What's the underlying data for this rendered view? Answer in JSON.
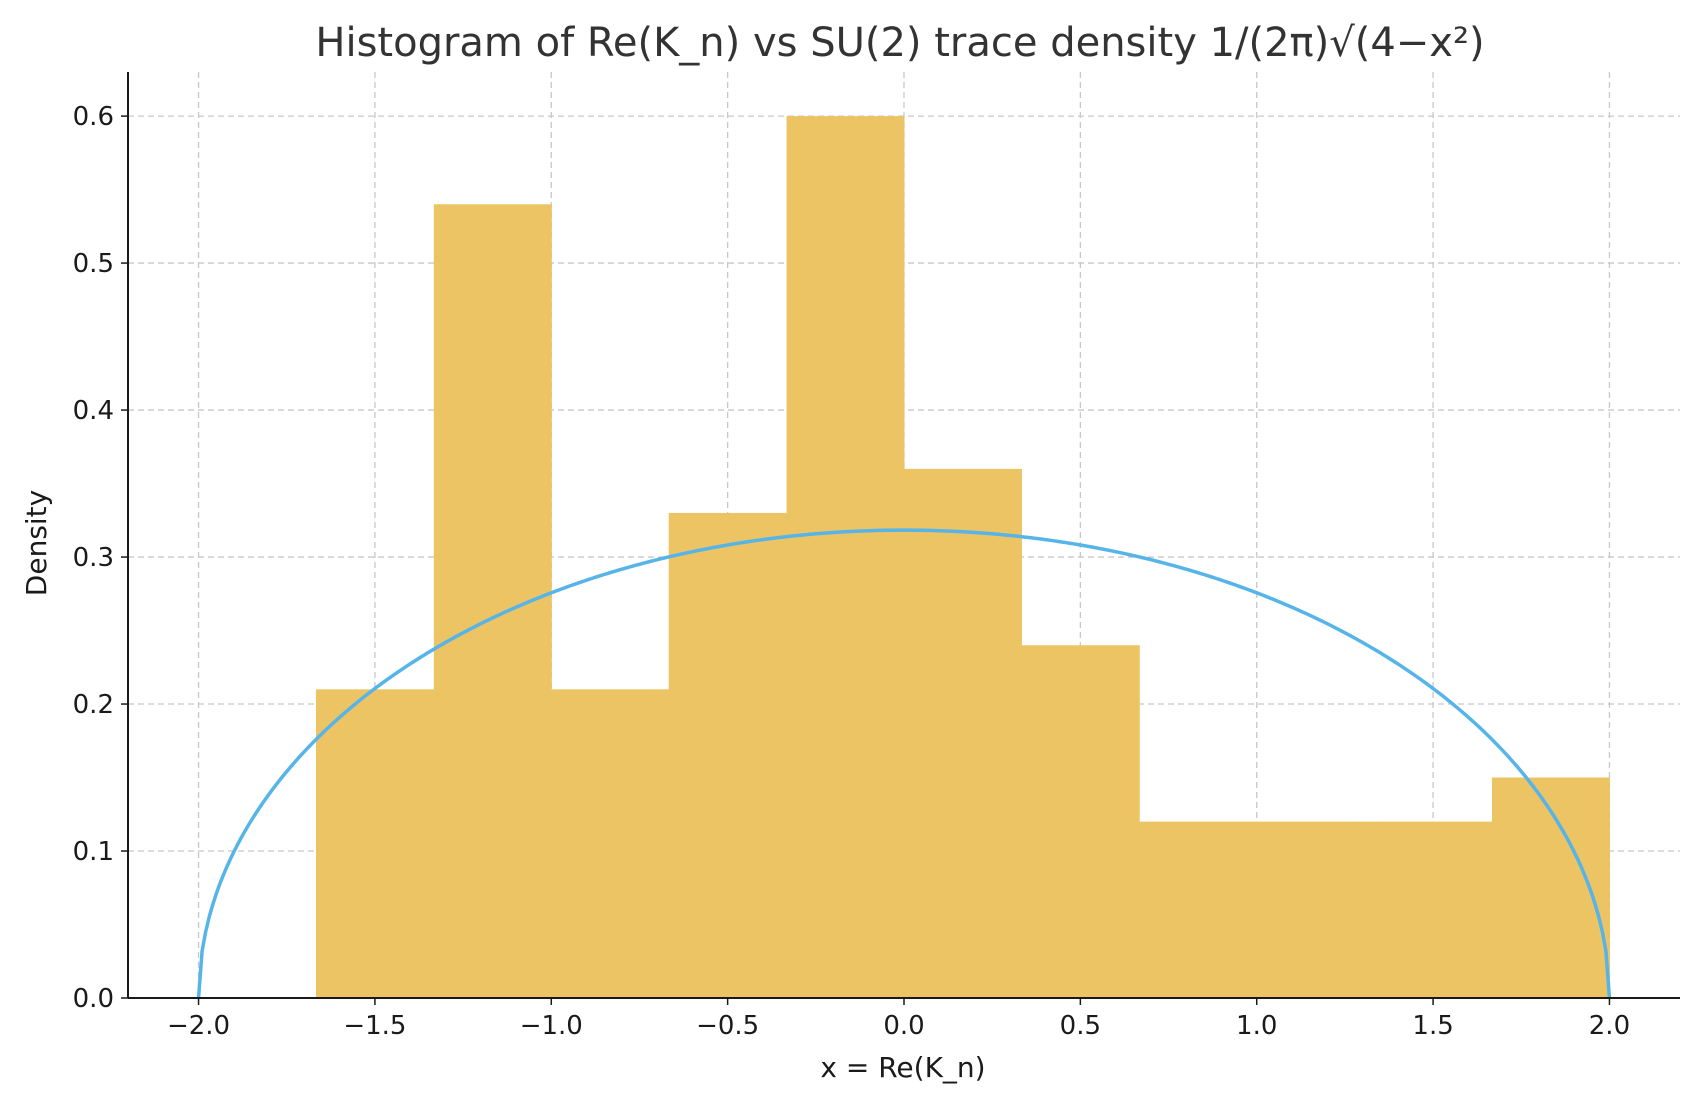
{
  "chart_data": {
    "type": "bar",
    "title": "Histogram of Re(K_n) vs SU(2) trace density 1/(2π)√(4−x²)",
    "xlabel": "x = Re(K_n)",
    "ylabel": "Density",
    "xlim": [
      -2.2,
      2.2
    ],
    "ylim": [
      0.0,
      0.63
    ],
    "grid": true,
    "x_ticks": [
      -2.0,
      -1.5,
      -1.0,
      -0.5,
      0.0,
      0.5,
      1.0,
      1.5,
      2.0
    ],
    "x_tick_labels": [
      "−2.0",
      "−1.5",
      "−1.0",
      "−0.5",
      "0.0",
      "0.5",
      "1.0",
      "1.5",
      "2.0"
    ],
    "y_ticks": [
      0.0,
      0.1,
      0.2,
      0.3,
      0.4,
      0.5,
      0.6
    ],
    "y_tick_labels": [
      "0.0",
      "0.1",
      "0.2",
      "0.3",
      "0.4",
      "0.5",
      "0.6"
    ],
    "histogram": {
      "color": "#ecc464",
      "bin_edges": [
        -1.667,
        -1.333,
        -1.0,
        -0.667,
        -0.333,
        0.0,
        0.333,
        0.667,
        1.0,
        1.333,
        1.667,
        2.0
      ],
      "values": [
        0.21,
        0.54,
        0.21,
        0.33,
        0.6,
        0.36,
        0.24,
        0.12,
        0.12,
        0.12,
        0.15
      ]
    },
    "curve": {
      "type": "line",
      "color": "#56b4e9",
      "function": "1/(2π)√(4−x²)",
      "domain": [
        -2.0,
        2.0
      ]
    }
  }
}
